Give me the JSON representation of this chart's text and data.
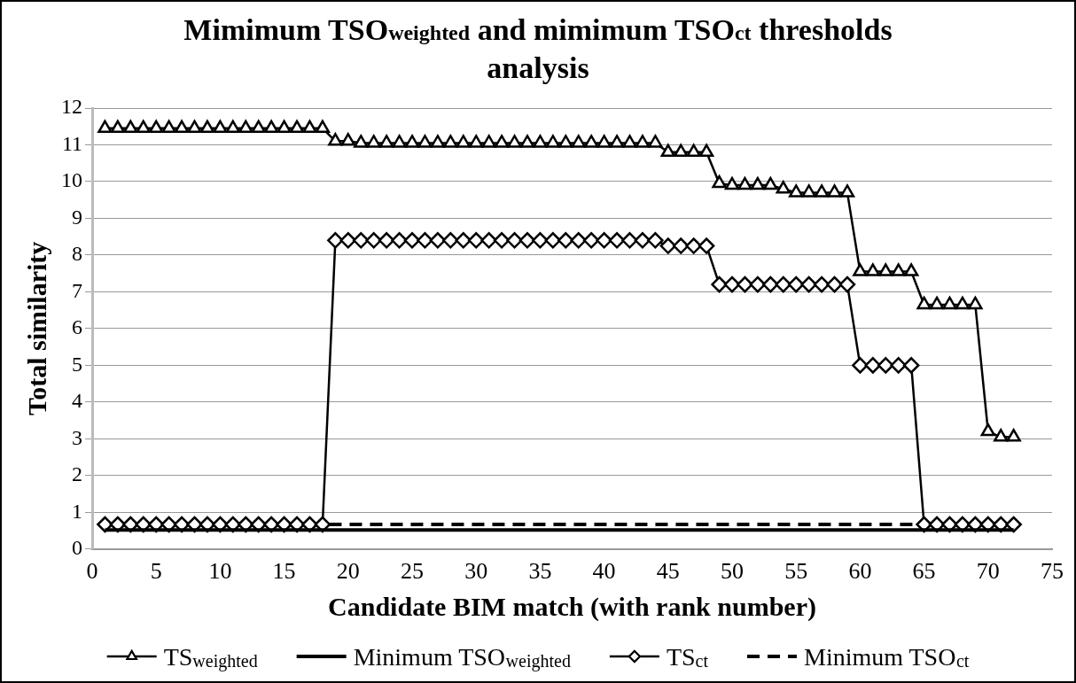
{
  "chart_data": {
    "type": "line",
    "title": "Mimimum TSO$_{weighted}$ and mimimum TSO$_{ct}$ thresholds analysis",
    "xlabel": "Candidate BIM match (with rank number)",
    "ylabel": "Total similarity",
    "x": [
      1,
      2,
      3,
      4,
      5,
      6,
      7,
      8,
      9,
      10,
      11,
      12,
      13,
      14,
      15,
      16,
      17,
      18,
      19,
      20,
      21,
      22,
      23,
      24,
      25,
      26,
      27,
      28,
      29,
      30,
      31,
      32,
      33,
      34,
      35,
      36,
      37,
      38,
      39,
      40,
      41,
      42,
      43,
      44,
      45,
      46,
      47,
      48,
      49,
      50,
      51,
      52,
      53,
      54,
      55,
      56,
      57,
      58,
      59,
      60,
      61,
      62,
      63,
      64,
      65,
      66,
      67,
      68,
      69,
      70,
      71,
      72
    ],
    "series": [
      {
        "name": "TS$_{weighted}$",
        "color": "#000000",
        "marker": "triangle",
        "line_style": "solid",
        "values": [
          11.45,
          11.45,
          11.45,
          11.45,
          11.45,
          11.45,
          11.45,
          11.45,
          11.45,
          11.45,
          11.45,
          11.45,
          11.45,
          11.45,
          11.45,
          11.45,
          11.45,
          11.45,
          11.1,
          11.1,
          11.05,
          11.05,
          11.05,
          11.05,
          11.05,
          11.05,
          11.05,
          11.05,
          11.05,
          11.05,
          11.05,
          11.05,
          11.05,
          11.05,
          11.05,
          11.05,
          11.05,
          11.05,
          11.05,
          11.05,
          11.05,
          11.05,
          11.05,
          11.05,
          10.8,
          10.8,
          10.8,
          10.8,
          9.95,
          9.9,
          9.9,
          9.9,
          9.9,
          9.8,
          9.7,
          9.7,
          9.7,
          9.7,
          9.7,
          7.55,
          7.55,
          7.55,
          7.55,
          7.55,
          6.65,
          6.65,
          6.65,
          6.65,
          6.65,
          3.2,
          3.05,
          3.05
        ]
      },
      {
        "name": "Minimum TSO$_{weighted}$",
        "color": "#000000",
        "marker": "none",
        "line_style": "solid",
        "values": [
          0.52,
          0.52,
          0.52,
          0.52,
          0.52,
          0.52,
          0.52,
          0.52,
          0.52,
          0.52,
          0.52,
          0.52,
          0.52,
          0.52,
          0.52,
          0.52,
          0.52,
          0.52,
          0.52,
          0.52,
          0.52,
          0.52,
          0.52,
          0.52,
          0.52,
          0.52,
          0.52,
          0.52,
          0.52,
          0.52,
          0.52,
          0.52,
          0.52,
          0.52,
          0.52,
          0.52,
          0.52,
          0.52,
          0.52,
          0.52,
          0.52,
          0.52,
          0.52,
          0.52,
          0.52,
          0.52,
          0.52,
          0.52,
          0.52,
          0.52,
          0.52,
          0.52,
          0.52,
          0.52,
          0.52,
          0.52,
          0.52,
          0.52,
          0.52,
          0.52,
          0.52,
          0.52,
          0.52,
          0.52,
          0.52,
          0.52,
          0.52,
          0.52,
          0.52,
          0.52,
          0.52,
          0.52
        ]
      },
      {
        "name": "TS$_{ct}$",
        "color": "#000000",
        "marker": "diamond",
        "line_style": "solid",
        "values": [
          0.67,
          0.67,
          0.67,
          0.67,
          0.67,
          0.67,
          0.67,
          0.67,
          0.67,
          0.67,
          0.67,
          0.67,
          0.67,
          0.67,
          0.67,
          0.67,
          0.67,
          0.67,
          8.4,
          8.4,
          8.4,
          8.4,
          8.4,
          8.4,
          8.4,
          8.4,
          8.4,
          8.4,
          8.4,
          8.4,
          8.4,
          8.4,
          8.4,
          8.4,
          8.4,
          8.4,
          8.4,
          8.4,
          8.4,
          8.4,
          8.4,
          8.4,
          8.4,
          8.4,
          8.25,
          8.25,
          8.25,
          8.25,
          7.2,
          7.2,
          7.2,
          7.2,
          7.2,
          7.2,
          7.2,
          7.2,
          7.2,
          7.2,
          7.2,
          5,
          5,
          5,
          5,
          5,
          0.67,
          0.67,
          0.67,
          0.67,
          0.67,
          0.67,
          0.67,
          0.67
        ]
      },
      {
        "name": "Minimum TSO$_{ct}$",
        "color": "#000000",
        "marker": "none",
        "line_style": "dashed",
        "values": [
          0.67,
          0.67,
          0.67,
          0.67,
          0.67,
          0.67,
          0.67,
          0.67,
          0.67,
          0.67,
          0.67,
          0.67,
          0.67,
          0.67,
          0.67,
          0.67,
          0.67,
          0.67,
          0.67,
          0.67,
          0.67,
          0.67,
          0.67,
          0.67,
          0.67,
          0.67,
          0.67,
          0.67,
          0.67,
          0.67,
          0.67,
          0.67,
          0.67,
          0.67,
          0.67,
          0.67,
          0.67,
          0.67,
          0.67,
          0.67,
          0.67,
          0.67,
          0.67,
          0.67,
          0.67,
          0.67,
          0.67,
          0.67,
          0.67,
          0.67,
          0.67,
          0.67,
          0.67,
          0.67,
          0.67,
          0.67,
          0.67,
          0.67,
          0.67,
          0.67,
          0.67,
          0.67,
          0.67,
          0.67,
          0.67,
          0.67,
          0.67,
          0.67,
          0.67,
          0.67,
          0.67,
          0.67
        ]
      }
    ],
    "xlim": [
      0,
      75
    ],
    "xticks": [
      0,
      5,
      10,
      15,
      20,
      25,
      30,
      35,
      40,
      45,
      50,
      55,
      60,
      65,
      70,
      75
    ],
    "ylim": [
      0,
      12
    ],
    "yticks": [
      0,
      1,
      2,
      3,
      4,
      5,
      6,
      7,
      8,
      9,
      10,
      11,
      12
    ],
    "grid": "y",
    "legend": "bottom"
  }
}
